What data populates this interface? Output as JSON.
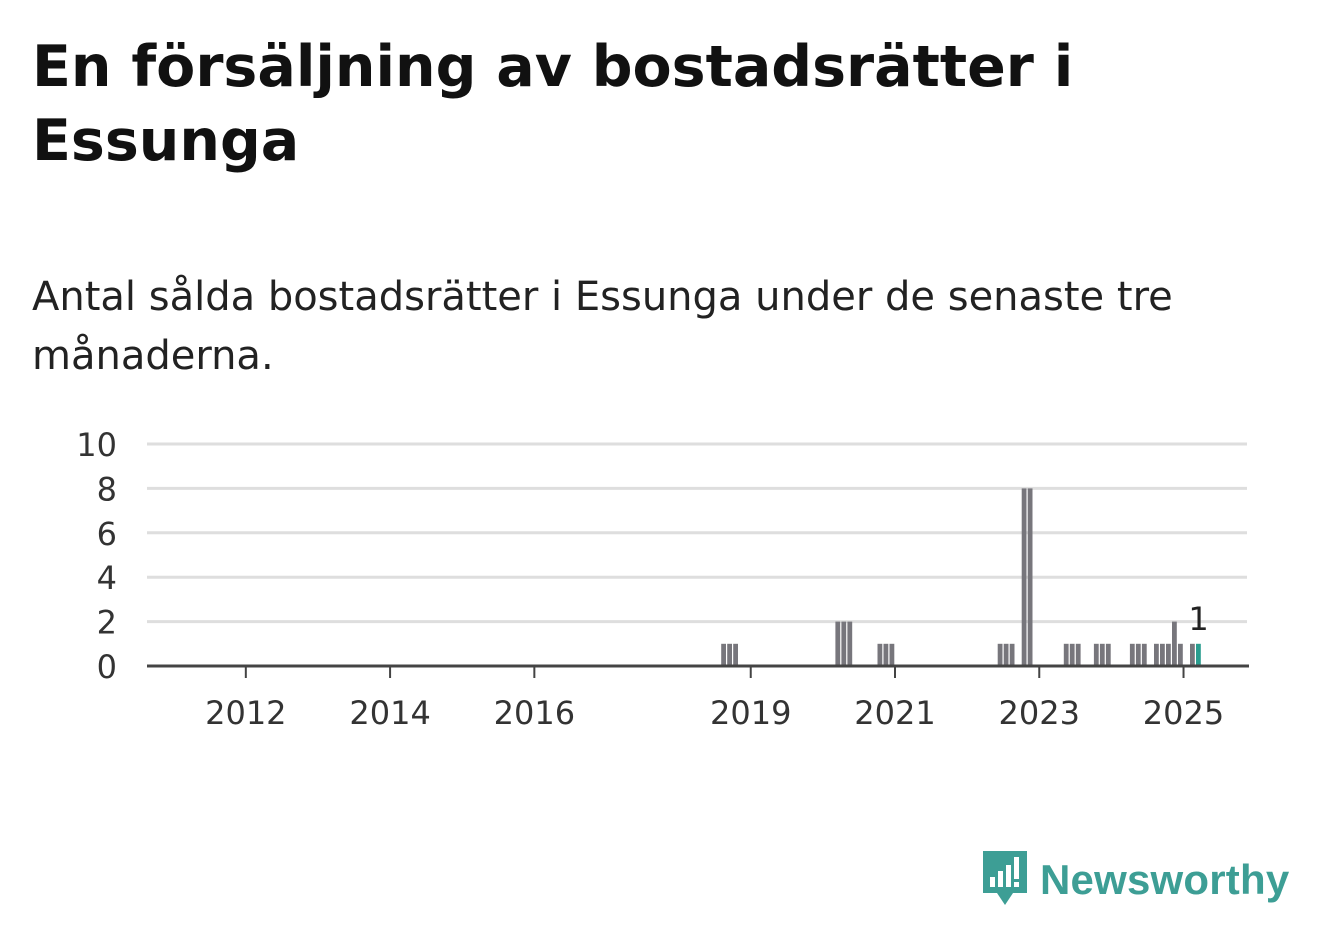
{
  "title": "En försäljning av bostadsrätter i Essunga",
  "subtitle": "Antal sålda bostadsrätter i Essunga under de senaste tre månaderna.",
  "brand": {
    "name": "Newsworthy",
    "icon": "newsworthy-logo-icon",
    "color": "#3d9e95"
  },
  "colors": {
    "bar": "#77767c",
    "highlight": "#2a9d8f",
    "grid": "#dedede",
    "axis": "#444444"
  },
  "chart_data": {
    "type": "bar",
    "ylim": [
      0,
      10
    ],
    "yticks": [
      0,
      2,
      4,
      6,
      8,
      10
    ],
    "xticks": [
      {
        "label": "2012",
        "t": 2012.0
      },
      {
        "label": "2014",
        "t": 2014.0
      },
      {
        "label": "2016",
        "t": 2016.0
      },
      {
        "label": "2019",
        "t": 2019.0
      },
      {
        "label": "2021",
        "t": 2021.0
      },
      {
        "label": "2023",
        "t": 2023.0
      },
      {
        "label": "2025",
        "t": 2025.0
      }
    ],
    "grid": true,
    "series": [
      {
        "values": [
          {
            "period": "2018-08",
            "value": 1
          },
          {
            "period": "2018-09",
            "value": 1
          },
          {
            "period": "2018-10",
            "value": 1
          },
          {
            "period": "2020-03",
            "value": 2
          },
          {
            "period": "2020-04",
            "value": 2
          },
          {
            "period": "2020-05",
            "value": 2
          },
          {
            "period": "2020-10",
            "value": 1
          },
          {
            "period": "2020-11",
            "value": 1
          },
          {
            "period": "2020-12",
            "value": 1
          },
          {
            "period": "2022-06",
            "value": 1
          },
          {
            "period": "2022-07",
            "value": 1
          },
          {
            "period": "2022-08",
            "value": 1
          },
          {
            "period": "2022-10",
            "value": 8
          },
          {
            "period": "2022-11",
            "value": 8
          },
          {
            "period": "2023-05",
            "value": 1
          },
          {
            "period": "2023-06",
            "value": 1
          },
          {
            "period": "2023-07",
            "value": 1
          },
          {
            "period": "2023-10",
            "value": 1
          },
          {
            "period": "2023-11",
            "value": 1
          },
          {
            "period": "2023-12",
            "value": 1
          },
          {
            "period": "2024-04",
            "value": 1
          },
          {
            "period": "2024-05",
            "value": 1
          },
          {
            "period": "2024-06",
            "value": 1
          },
          {
            "period": "2024-08",
            "value": 1
          },
          {
            "period": "2024-09",
            "value": 1
          },
          {
            "period": "2024-10",
            "value": 1
          },
          {
            "period": "2024-11",
            "value": 2
          },
          {
            "period": "2024-12",
            "value": 1
          },
          {
            "period": "2025-02",
            "value": 1
          },
          {
            "period": "2025-03",
            "value": 1,
            "highlight": true,
            "label": "1"
          }
        ]
      }
    ]
  }
}
